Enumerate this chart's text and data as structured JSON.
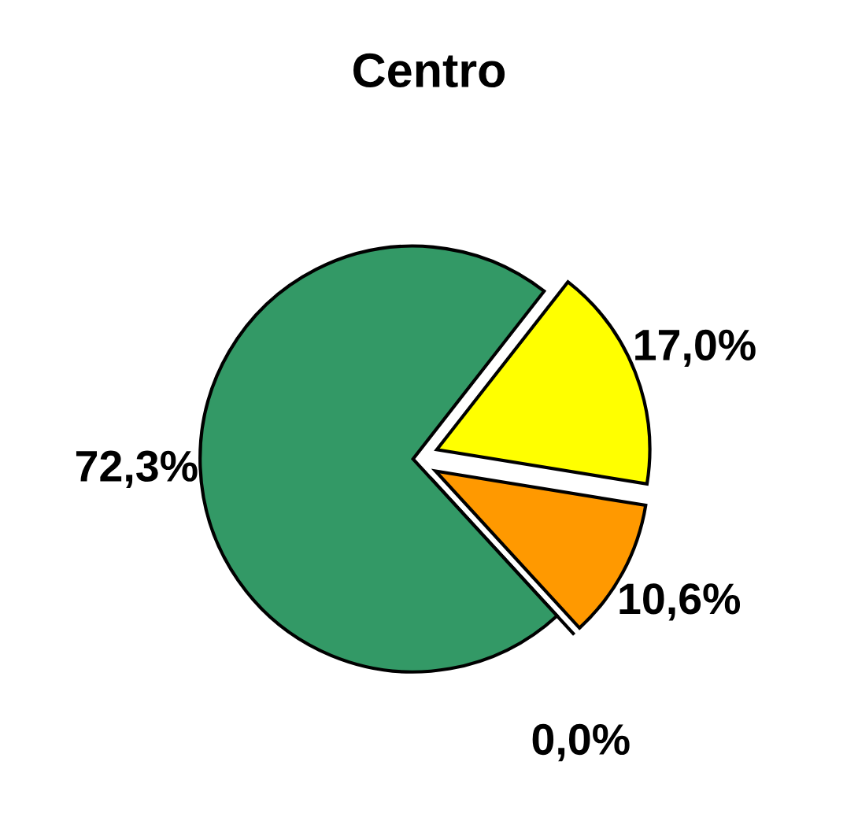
{
  "chart_data": {
    "type": "pie",
    "title": "Centro",
    "categories": [
      null,
      null,
      null,
      null
    ],
    "values": [
      17.0,
      10.6,
      0.0,
      72.3
    ],
    "colors": [
      "#ffff00",
      "#ff9900",
      "#990000",
      "#339966"
    ],
    "value_labels": [
      "17,0%",
      "10,6%",
      "0,0%",
      "72,3%"
    ]
  }
}
